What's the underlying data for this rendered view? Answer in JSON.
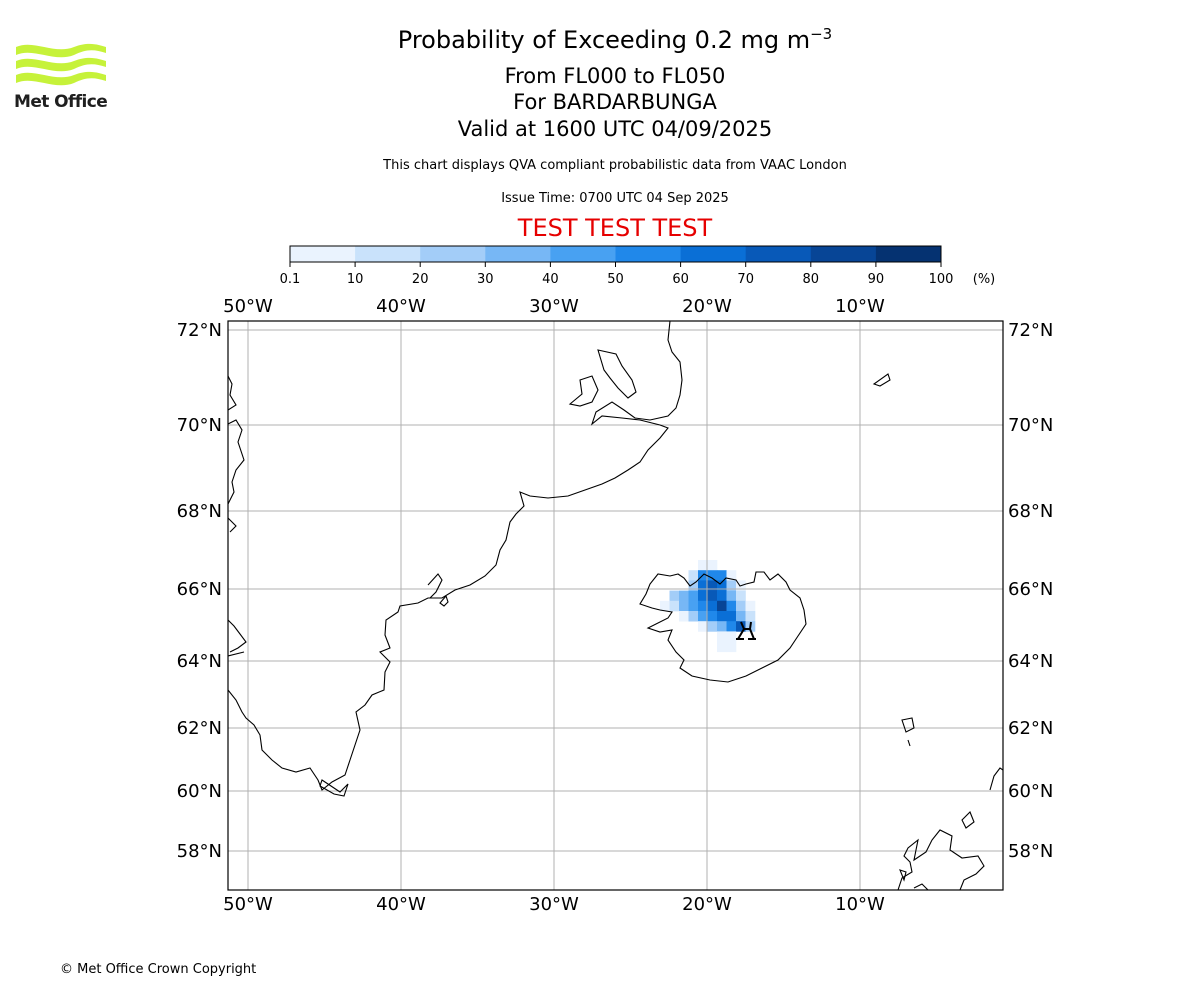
{
  "logo": {
    "name": "Met Office",
    "colors": {
      "waves": "#c6f23a",
      "text": "#1f1f1f"
    }
  },
  "title": {
    "main_prefix": "Probability of Exceeding 0.2 mg m",
    "main_exponent": "−3",
    "levels": "From FL000 to FL050",
    "volcano": "For BARDARBUNGA",
    "valid": "Valid at 1600 UTC 04/09/2025"
  },
  "note": "This chart displays QVA compliant probabilistic data from VAAC London",
  "issue_time": "Issue Time: 0700 UTC 04 Sep 2025",
  "test_banner": "TEST TEST TEST",
  "colorbar": {
    "tick_labels": [
      "0.1",
      "10",
      "20",
      "30",
      "40",
      "50",
      "60",
      "70",
      "80",
      "90",
      "100"
    ],
    "unit": "(%)",
    "colors": [
      "#eaf3fe",
      "#c9e2fb",
      "#a3cdf8",
      "#77b7f5",
      "#48a1f2",
      "#2088ea",
      "#0a6fd6",
      "#0859b8",
      "#074596",
      "#053271"
    ]
  },
  "map": {
    "lon_labels": [
      "50°W",
      "40°W",
      "30°W",
      "20°W",
      "10°W"
    ],
    "lat_labels": [
      "72°N",
      "70°N",
      "68°N",
      "66°N",
      "64°N",
      "62°N",
      "60°N",
      "58°N"
    ],
    "volcano_icon": "volcano-icon"
  },
  "footer": "© Met Office Crown Copyright"
}
